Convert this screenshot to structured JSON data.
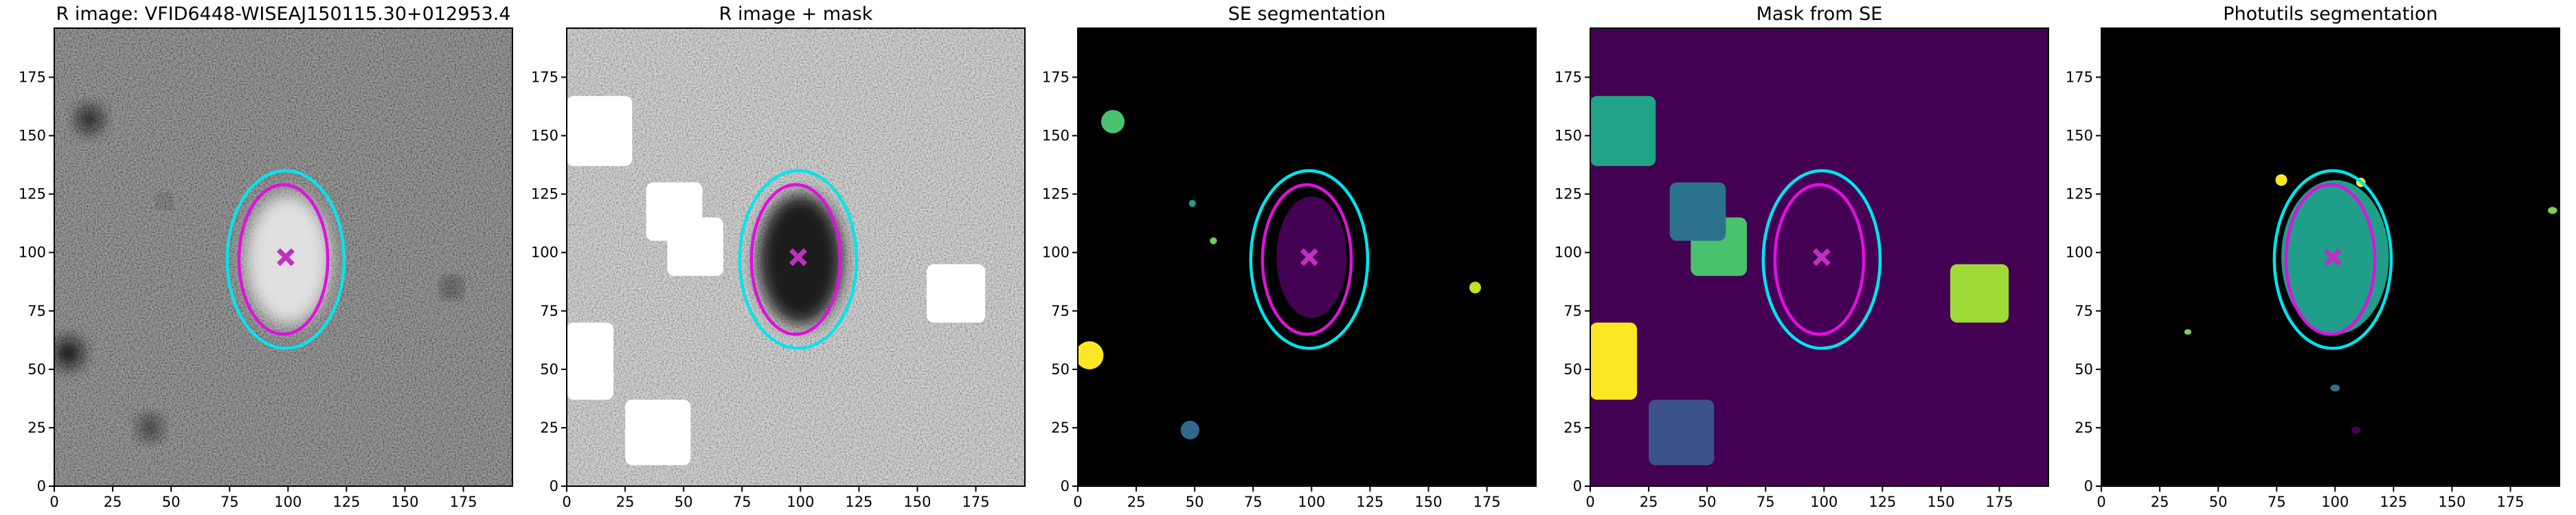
{
  "chart_data": [
    {
      "type": "image",
      "title": "R image: VFID6448-WISEAJ150115.30+012953.4",
      "xlim": [
        0,
        196
      ],
      "ylim": [
        0,
        196
      ],
      "xticks": [
        0,
        25,
        50,
        75,
        100,
        125,
        150,
        175
      ],
      "yticks": [
        0,
        25,
        50,
        75,
        100,
        125,
        150,
        175
      ],
      "background": "#5c5c5c",
      "noise": true,
      "rects": [],
      "blobs": [
        {
          "cx": 100,
          "cy": 97,
          "rx": 18,
          "ry": 28,
          "color": "#e0e0e0"
        },
        {
          "cx": 15,
          "cy": 157,
          "rx": 5,
          "ry": 5,
          "color": "#101010"
        },
        {
          "cx": 6,
          "cy": 57,
          "rx": 6,
          "ry": 6,
          "color": "#101010"
        },
        {
          "cx": 41,
          "cy": 25,
          "rx": 4,
          "ry": 4,
          "color": "#151515"
        },
        {
          "cx": 170,
          "cy": 85,
          "rx": 3,
          "ry": 3,
          "color": "#181818"
        },
        {
          "cx": 47,
          "cy": 122,
          "rx": 2,
          "ry": 2,
          "color": "#202020"
        }
      ],
      "ellipses": [
        {
          "cx": 99,
          "cy": 97,
          "rx": 25,
          "ry": 38,
          "color": "#00e5ee"
        },
        {
          "cx": 98,
          "cy": 97,
          "rx": 19,
          "ry": 32,
          "color": "#e010e0"
        }
      ],
      "marker": {
        "x": 99,
        "y": 98,
        "color": "#c030c0"
      }
    },
    {
      "type": "image",
      "title": "R image + mask",
      "xlim": [
        0,
        196
      ],
      "ylim": [
        0,
        196
      ],
      "xticks": [
        0,
        25,
        50,
        75,
        100,
        125,
        150,
        175
      ],
      "yticks": [
        0,
        25,
        50,
        75,
        100,
        125,
        150,
        175
      ],
      "background": "#c4c4c4",
      "noise": true,
      "blobs": [
        {
          "cx": 100,
          "cy": 97,
          "rx": 18,
          "ry": 28,
          "color": "#1a1a1a"
        }
      ],
      "rects": [
        {
          "x": 0,
          "y": 137,
          "w": 28,
          "h": 30,
          "color": "#ffffff"
        },
        {
          "x": 43,
          "y": 90,
          "w": 24,
          "h": 25,
          "color": "#ffffff"
        },
        {
          "x": 34,
          "y": 105,
          "w": 24,
          "h": 25,
          "color": "#ffffff"
        },
        {
          "x": 154,
          "y": 70,
          "w": 25,
          "h": 25,
          "color": "#ffffff"
        },
        {
          "x": 0,
          "y": 37,
          "w": 20,
          "h": 33,
          "color": "#ffffff"
        },
        {
          "x": 25,
          "y": 9,
          "w": 28,
          "h": 28,
          "color": "#ffffff"
        }
      ],
      "ellipses": [
        {
          "cx": 99,
          "cy": 97,
          "rx": 25,
          "ry": 38,
          "color": "#00e5ee"
        },
        {
          "cx": 98,
          "cy": 97,
          "rx": 19,
          "ry": 32,
          "color": "#e010e0"
        }
      ],
      "marker": {
        "x": 99,
        "y": 98,
        "color": "#c030c0"
      }
    },
    {
      "type": "image",
      "title": "SE segmentation",
      "xlim": [
        0,
        196
      ],
      "ylim": [
        0,
        196
      ],
      "xticks": [
        0,
        25,
        50,
        75,
        100,
        125,
        150,
        175
      ],
      "yticks": [
        0,
        25,
        50,
        75,
        100,
        125,
        150,
        175
      ],
      "background": "#000000",
      "noise": false,
      "rects": [],
      "blobs": [
        {
          "cx": 15,
          "cy": 156,
          "rx": 5,
          "ry": 5,
          "color": "#4ac16d"
        },
        {
          "cx": 5,
          "cy": 56,
          "rx": 6,
          "ry": 6,
          "color": "#fde725"
        },
        {
          "cx": 48,
          "cy": 24,
          "rx": 4,
          "ry": 4,
          "color": "#31688e"
        },
        {
          "cx": 49,
          "cy": 121,
          "rx": 1.5,
          "ry": 1.5,
          "color": "#1f9e89"
        },
        {
          "cx": 58,
          "cy": 105,
          "rx": 1.5,
          "ry": 1.5,
          "color": "#6ece58"
        },
        {
          "cx": 170,
          "cy": 85,
          "rx": 2.5,
          "ry": 2.5,
          "color": "#c8e020"
        },
        {
          "cx": 100,
          "cy": 98,
          "rx": 15,
          "ry": 26,
          "color": "#440154"
        }
      ],
      "ellipses": [
        {
          "cx": 99,
          "cy": 97,
          "rx": 25,
          "ry": 38,
          "color": "#00e5ee"
        },
        {
          "cx": 98,
          "cy": 97,
          "rx": 19,
          "ry": 32,
          "color": "#e010e0"
        }
      ],
      "marker": {
        "x": 99,
        "y": 98,
        "color": "#c030c0"
      }
    },
    {
      "type": "image",
      "title": "Mask from SE",
      "xlim": [
        0,
        196
      ],
      "ylim": [
        0,
        196
      ],
      "xticks": [
        0,
        25,
        50,
        75,
        100,
        125,
        150,
        175
      ],
      "yticks": [
        0,
        25,
        50,
        75,
        100,
        125,
        150,
        175
      ],
      "background": "#440154",
      "noise": false,
      "blobs": [],
      "rects": [
        {
          "x": 0,
          "y": 137,
          "w": 28,
          "h": 30,
          "color": "#20a386"
        },
        {
          "x": 43,
          "y": 90,
          "w": 24,
          "h": 25,
          "color": "#4ac16d"
        },
        {
          "x": 34,
          "y": 105,
          "w": 24,
          "h": 25,
          "color": "#2c728e"
        },
        {
          "x": 154,
          "y": 70,
          "w": 25,
          "h": 25,
          "color": "#a0da39"
        },
        {
          "x": 0,
          "y": 37,
          "w": 20,
          "h": 33,
          "color": "#fde725"
        },
        {
          "x": 25,
          "y": 9,
          "w": 28,
          "h": 28,
          "color": "#3b528b"
        }
      ],
      "ellipses": [
        {
          "cx": 99,
          "cy": 97,
          "rx": 25,
          "ry": 38,
          "color": "#00e5ee"
        },
        {
          "cx": 98,
          "cy": 97,
          "rx": 19,
          "ry": 32,
          "color": "#e010e0"
        }
      ],
      "marker": {
        "x": 99,
        "y": 98,
        "color": "#c030c0"
      }
    },
    {
      "type": "image",
      "title": "Photutils segmentation",
      "xlim": [
        0,
        196
      ],
      "ylim": [
        0,
        196
      ],
      "xticks": [
        0,
        25,
        50,
        75,
        100,
        125,
        150,
        175
      ],
      "yticks": [
        0,
        25,
        50,
        75,
        100,
        125,
        150,
        175
      ],
      "background": "#000000",
      "noise": false,
      "rects": [],
      "blobs": [
        {
          "cx": 100,
          "cy": 98,
          "rx": 23,
          "ry": 33,
          "color": "#1f9e89"
        },
        {
          "cx": 77,
          "cy": 131,
          "rx": 2.5,
          "ry": 2.5,
          "color": "#fde725"
        },
        {
          "cx": 111,
          "cy": 130,
          "rx": 2,
          "ry": 2,
          "color": "#fde725"
        },
        {
          "cx": 193,
          "cy": 118,
          "rx": 2,
          "ry": 1.5,
          "color": "#7ad151"
        },
        {
          "cx": 37,
          "cy": 66,
          "rx": 1.5,
          "ry": 1.2,
          "color": "#7ad151"
        },
        {
          "cx": 100,
          "cy": 42,
          "rx": 2,
          "ry": 1.5,
          "color": "#2c728e"
        },
        {
          "cx": 109,
          "cy": 24,
          "rx": 2,
          "ry": 1.5,
          "color": "#440154"
        }
      ],
      "ellipses": [
        {
          "cx": 99,
          "cy": 97,
          "rx": 25,
          "ry": 38,
          "color": "#00e5ee"
        },
        {
          "cx": 98,
          "cy": 97,
          "rx": 19,
          "ry": 32,
          "color": "#e010e0"
        }
      ],
      "marker": {
        "x": 99,
        "y": 98,
        "color": "#c030c0"
      }
    }
  ]
}
